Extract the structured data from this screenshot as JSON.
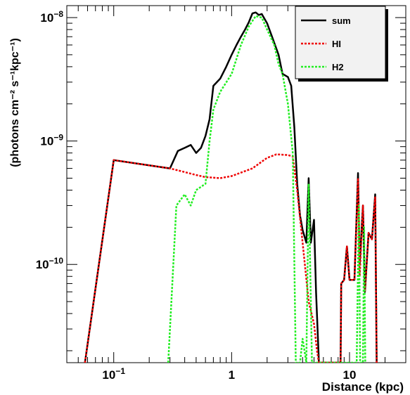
{
  "chart_data": {
    "type": "line",
    "title": "",
    "xlabel": "Distance (kpc)",
    "ylabel": "(photons cm⁻² s⁻¹kpc⁻¹)",
    "xscale": "log",
    "yscale": "log",
    "xlim": [
      0.04,
      30
    ],
    "ylim": [
      1.6e-11,
      1.25e-08
    ],
    "grid": false,
    "legend_position": "top-right",
    "x_ticks": [
      {
        "value": 0.1,
        "base": "10",
        "exp": "−1"
      },
      {
        "value": 1,
        "base": "1",
        "exp": ""
      },
      {
        "value": 10,
        "base": "10",
        "exp": ""
      }
    ],
    "y_ticks": [
      {
        "value": 1e-10,
        "base": "10",
        "exp": "−10"
      },
      {
        "value": 1e-09,
        "base": "10",
        "exp": "−9"
      },
      {
        "value": 1e-08,
        "base": "10",
        "exp": "−8"
      }
    ],
    "series": [
      {
        "name": "sum",
        "color": "#000000",
        "dash": "solid",
        "points": [
          [
            0.057,
            1.6e-11
          ],
          [
            0.1,
            7e-10
          ],
          [
            0.3,
            6e-10
          ],
          [
            0.35,
            8.3e-10
          ],
          [
            0.4,
            8.8e-10
          ],
          [
            0.45,
            9.3e-10
          ],
          [
            0.5,
            8e-10
          ],
          [
            0.55,
            8.8e-10
          ],
          [
            0.6,
            1.1e-09
          ],
          [
            0.65,
            1.5e-09
          ],
          [
            0.7,
            2.8e-09
          ],
          [
            0.8,
            3.2e-09
          ],
          [
            0.9,
            4e-09
          ],
          [
            1.0,
            5e-09
          ],
          [
            1.1,
            6e-09
          ],
          [
            1.2,
            7e-09
          ],
          [
            1.3,
            8e-09
          ],
          [
            1.4,
            9.2e-09
          ],
          [
            1.5,
            1.08e-08
          ],
          [
            1.6,
            1.1e-08
          ],
          [
            1.7,
            1.05e-08
          ],
          [
            1.8,
            1.07e-08
          ],
          [
            2.0,
            9e-09
          ],
          [
            2.2,
            7e-09
          ],
          [
            2.5,
            5e-09
          ],
          [
            2.7,
            3.5e-09
          ],
          [
            3.0,
            3.3e-09
          ],
          [
            3.2,
            2.8e-09
          ],
          [
            3.4,
            1.3e-09
          ],
          [
            3.6,
            4.5e-10
          ],
          [
            3.8,
            2.5e-10
          ],
          [
            4.0,
            1.9e-10
          ],
          [
            4.3,
            1.5e-10
          ],
          [
            4.5,
            5e-10
          ],
          [
            4.7,
            1.5e-10
          ],
          [
            5.0,
            2.3e-10
          ],
          [
            5.2,
            6e-11
          ],
          [
            5.5,
            1.6e-11
          ],
          [
            8.4,
            1.6e-11
          ],
          [
            8.5,
            7e-11
          ],
          [
            9.0,
            7.5e-11
          ],
          [
            9.5,
            1.4e-10
          ],
          [
            10.0,
            7.5e-11
          ],
          [
            11.0,
            7.5e-11
          ],
          [
            11.8,
            5.5e-10
          ],
          [
            12.2,
            1e-10
          ],
          [
            13.0,
            3e-10
          ],
          [
            13.5,
            6e-11
          ],
          [
            14.5,
            1.8e-10
          ],
          [
            15.5,
            1.6e-10
          ],
          [
            16.5,
            3.7e-10
          ],
          [
            17.0,
            1.6e-11
          ]
        ]
      },
      {
        "name": "HI",
        "color": "#ee0000",
        "dash": "dotted",
        "points": [
          [
            0.057,
            1.6e-11
          ],
          [
            0.1,
            7e-10
          ],
          [
            0.3,
            6e-10
          ],
          [
            0.4,
            5.6e-10
          ],
          [
            0.5,
            5.3e-10
          ],
          [
            0.6,
            5.1e-10
          ],
          [
            0.8,
            5e-10
          ],
          [
            1.0,
            5.2e-10
          ],
          [
            1.5,
            6e-10
          ],
          [
            2.0,
            7.3e-10
          ],
          [
            2.4,
            7.8e-10
          ],
          [
            3.0,
            7.7e-10
          ],
          [
            3.3,
            7.5e-10
          ],
          [
            3.6,
            4e-10
          ],
          [
            4.0,
            1.5e-10
          ],
          [
            4.5,
            5e-11
          ],
          [
            5.0,
            3.3e-11
          ],
          [
            5.3,
            2e-11
          ],
          [
            5.5,
            1.6e-11
          ],
          [
            8.4,
            1.6e-11
          ],
          [
            8.5,
            7e-11
          ],
          [
            9.0,
            7.5e-11
          ],
          [
            9.5,
            1.4e-10
          ],
          [
            10.0,
            7.5e-11
          ],
          [
            11.0,
            7.5e-11
          ],
          [
            11.8,
            5e-10
          ],
          [
            12.2,
            8e-11
          ],
          [
            13.0,
            3e-10
          ],
          [
            13.5,
            6e-11
          ],
          [
            14.5,
            1.8e-10
          ],
          [
            15.5,
            1.6e-10
          ],
          [
            16.5,
            3.5e-10
          ],
          [
            17.0,
            1.6e-11
          ]
        ]
      },
      {
        "name": "H2",
        "color": "#22ee22",
        "dash": "dotted",
        "points": [
          [
            0.29,
            1.6e-11
          ],
          [
            0.34,
            3e-10
          ],
          [
            0.4,
            3.7e-10
          ],
          [
            0.45,
            3e-10
          ],
          [
            0.5,
            4e-10
          ],
          [
            0.6,
            4.5e-10
          ],
          [
            0.65,
            1e-09
          ],
          [
            0.7,
            1.8e-09
          ],
          [
            0.8,
            2.5e-09
          ],
          [
            1.0,
            3.5e-09
          ],
          [
            1.2,
            6e-09
          ],
          [
            1.4,
            8.5e-09
          ],
          [
            1.6,
            1.03e-08
          ],
          [
            1.8,
            1e-08
          ],
          [
            2.0,
            8e-09
          ],
          [
            2.3,
            6e-09
          ],
          [
            2.5,
            4.2e-09
          ],
          [
            2.7,
            3.5e-09
          ],
          [
            3.0,
            2e-09
          ],
          [
            3.3,
            8e-10
          ],
          [
            3.5,
            1.6e-11
          ],
          [
            3.8,
            1.6e-11
          ],
          [
            4.0,
            2.5e-11
          ],
          [
            4.3,
            1.6e-11
          ],
          [
            4.5,
            4.5e-10
          ],
          [
            4.8,
            1.6e-11
          ],
          [
            8.5,
            1.6e-11
          ],
          [
            9.2,
            1.6e-11
          ],
          [
            11.5,
            1.6e-11
          ],
          [
            12.0,
            3e-10
          ],
          [
            12.3,
            1.6e-11
          ],
          [
            13.0,
            1.6e-11
          ],
          [
            13.3,
            2e-10
          ],
          [
            13.6,
            1.6e-11
          ]
        ]
      }
    ]
  }
}
